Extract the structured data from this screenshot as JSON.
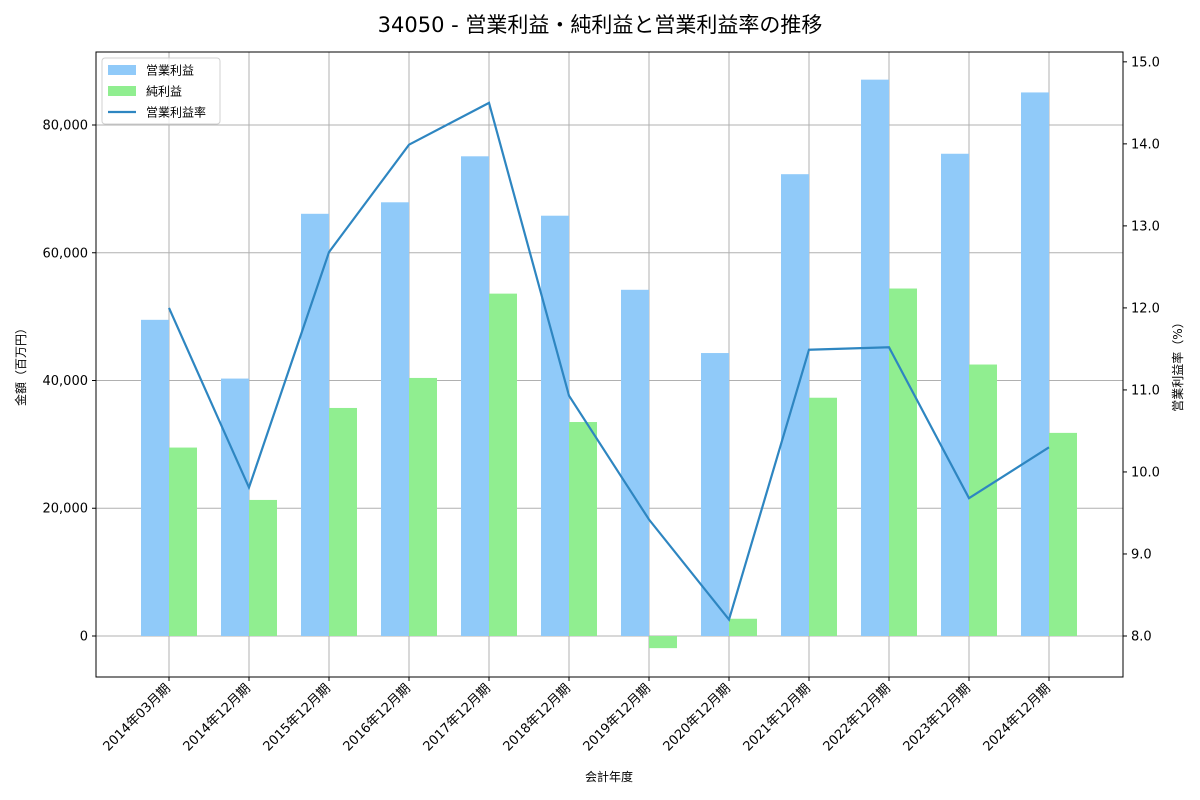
{
  "chart_data": {
    "type": "bar",
    "title": "34050 - 営業利益・純利益と営業利益率の推移",
    "xlabel": "会計年度",
    "ylabel": "金額（百万円）",
    "ylabel_right": "営業利益率（%）",
    "categories": [
      "2014年03月期",
      "2014年12月期",
      "2015年12月期",
      "2016年12月期",
      "2017年12月期",
      "2018年12月期",
      "2019年12月期",
      "2020年12月期",
      "2021年12月期",
      "2022年12月期",
      "2023年12月期",
      "2024年12月期"
    ],
    "series": [
      {
        "name": "営業利益",
        "type": "bar",
        "axis": "left",
        "color": "#90caf9",
        "values": [
          49500,
          40300,
          66100,
          67900,
          75100,
          65800,
          54200,
          44300,
          72300,
          87100,
          75500,
          85100
        ]
      },
      {
        "name": "純利益",
        "type": "bar",
        "axis": "left",
        "color": "#90ee90",
        "values": [
          29500,
          21300,
          35700,
          40400,
          53600,
          33500,
          -1900,
          2700,
          37300,
          54400,
          42500,
          31800
        ]
      },
      {
        "name": "営業利益率",
        "type": "line",
        "axis": "right",
        "color": "#2e86c1",
        "values": [
          12.0,
          9.81,
          12.68,
          13.99,
          14.5,
          10.93,
          9.42,
          8.2,
          11.49,
          11.52,
          9.68,
          10.3
        ]
      }
    ],
    "ylim": [
      -6420,
      91430
    ],
    "ylim_right": [
      7.5,
      15.12
    ],
    "yticks": [
      0,
      20000,
      40000,
      60000,
      80000
    ],
    "ytick_labels": [
      "0",
      "20,000",
      "40,000",
      "60,000",
      "80,000"
    ],
    "yticks_right": [
      8.0,
      9.0,
      10.0,
      11.0,
      12.0,
      13.0,
      14.0,
      15.0
    ],
    "ytick_labels_right": [
      "8.0",
      "9.0",
      "10.0",
      "11.0",
      "12.0",
      "13.0",
      "14.0",
      "15.0"
    ],
    "grid": true,
    "legend_position": "upper left"
  },
  "legend": {
    "items": [
      {
        "label": "営業利益",
        "kind": "patch",
        "color": "#90caf9"
      },
      {
        "label": "純利益",
        "kind": "patch",
        "color": "#90ee90"
      },
      {
        "label": "営業利益率",
        "kind": "line",
        "color": "#2e86c1"
      }
    ]
  }
}
